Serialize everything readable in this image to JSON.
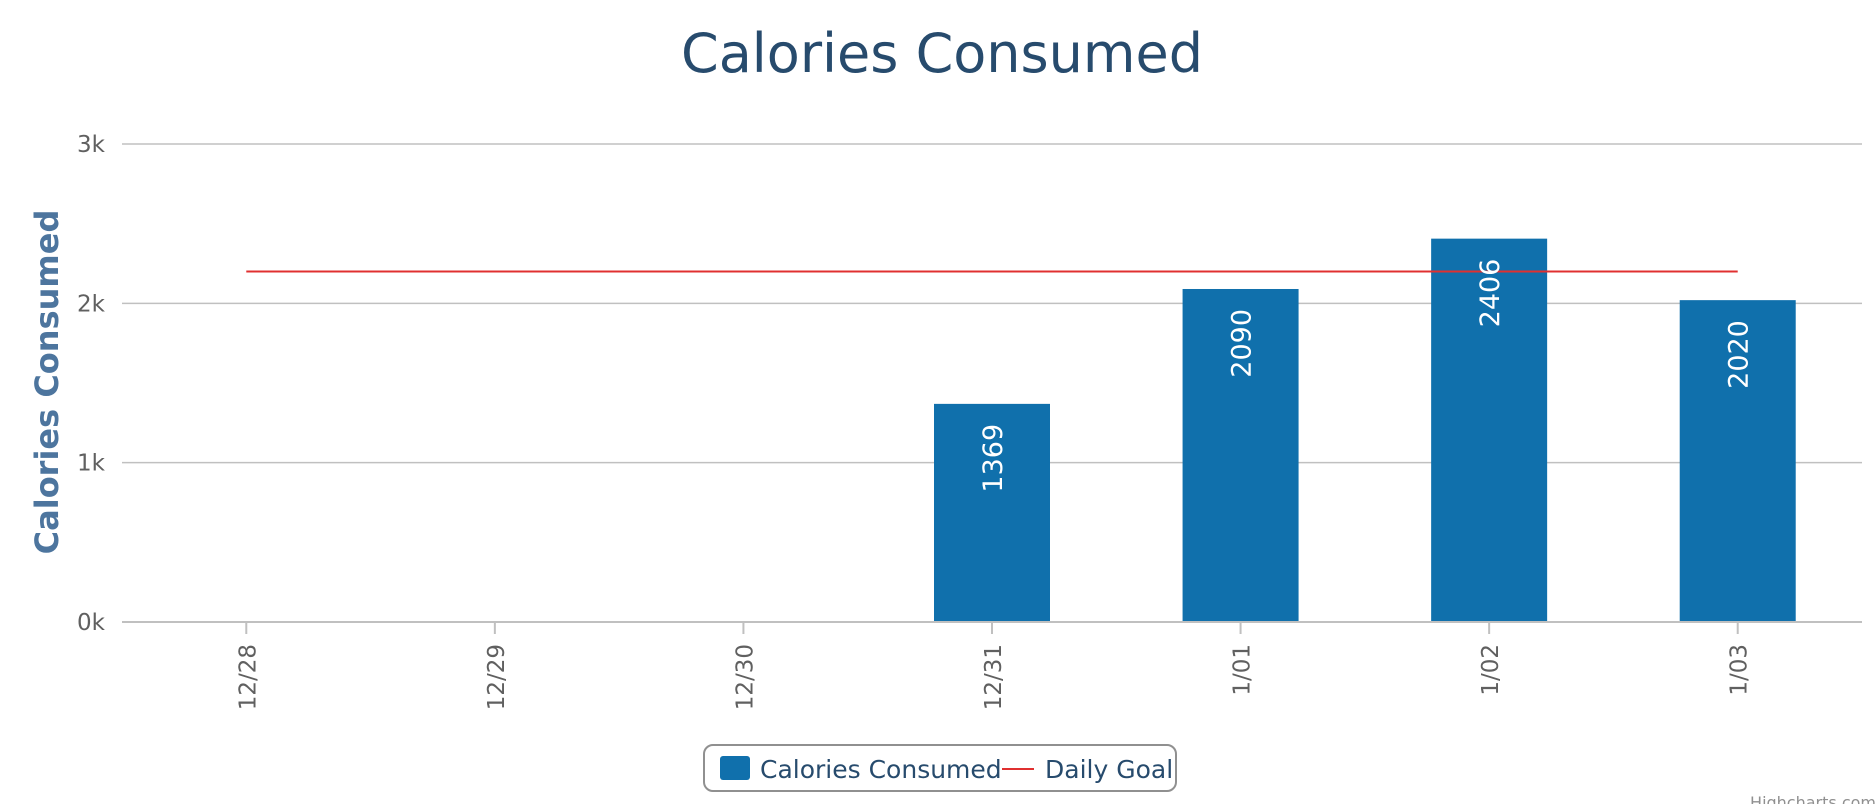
{
  "chart_data": {
    "type": "bar",
    "title": "Calories Consumed",
    "xlabel": "",
    "ylabel": "Calories Consumed",
    "categories": [
      "12/28",
      "12/29",
      "12/30",
      "12/31",
      "1/01",
      "1/02",
      "1/03"
    ],
    "series": [
      {
        "name": "Calories Consumed",
        "type": "bar",
        "color": "#1070ac",
        "values": [
          null,
          null,
          null,
          1369,
          2090,
          2406,
          2020
        ],
        "data_labels": [
          "",
          "",
          "",
          "1369",
          "2090",
          "2406",
          "2020"
        ]
      },
      {
        "name": "Daily Goal",
        "type": "line",
        "color": "#e03030",
        "values": [
          2200,
          2200,
          2200,
          2200,
          2200,
          2200,
          2200
        ]
      }
    ],
    "ylim": [
      0,
      3000
    ],
    "y_ticks": [
      0,
      1000,
      2000,
      3000
    ],
    "y_tick_labels": [
      "0k",
      "1k",
      "2k",
      "3k"
    ],
    "grid": true,
    "legend": "bottom-center"
  },
  "credits": "Highcharts.com",
  "colors": {
    "title": "#274b6d",
    "axis_title": "#4d759e",
    "grid": "#c0c0c0",
    "bar": "#1070ac",
    "goal_line": "#e03030"
  }
}
